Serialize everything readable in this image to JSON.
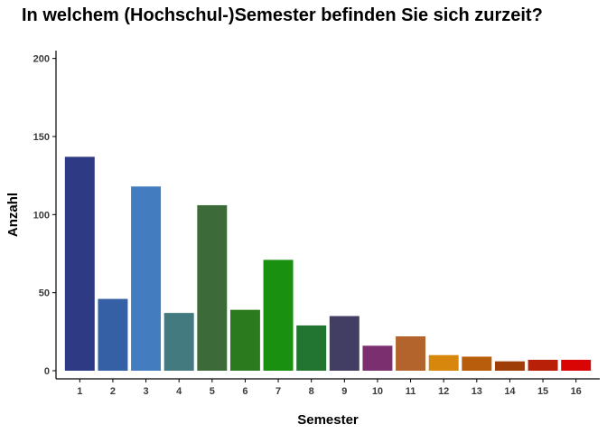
{
  "chart_data": {
    "type": "bar",
    "title": "In welchem (Hochschul-)Semester befinden Sie sich zurzeit?",
    "xlabel": "Semester",
    "ylabel": "Anzahl",
    "categories": [
      "1",
      "2",
      "3",
      "4",
      "5",
      "6",
      "7",
      "8",
      "9",
      "10",
      "11",
      "12",
      "13",
      "14",
      "15",
      "16"
    ],
    "values": [
      137,
      46,
      118,
      37,
      106,
      39,
      71,
      29,
      35,
      16,
      22,
      10,
      9,
      6,
      7,
      7
    ],
    "colors": [
      "#2e3b84",
      "#3560a6",
      "#437dbf",
      "#437a80",
      "#3c6b39",
      "#2b7a1d",
      "#1a9010",
      "#227530",
      "#413d63",
      "#7b2f6e",
      "#b3632c",
      "#d8870d",
      "#b85d0b",
      "#9e3d06",
      "#b82108",
      "#d90404"
    ],
    "ylim": [
      0,
      205
    ],
    "yticks": [
      0,
      50,
      100,
      150,
      200
    ],
    "grid": false,
    "legend": "none"
  }
}
